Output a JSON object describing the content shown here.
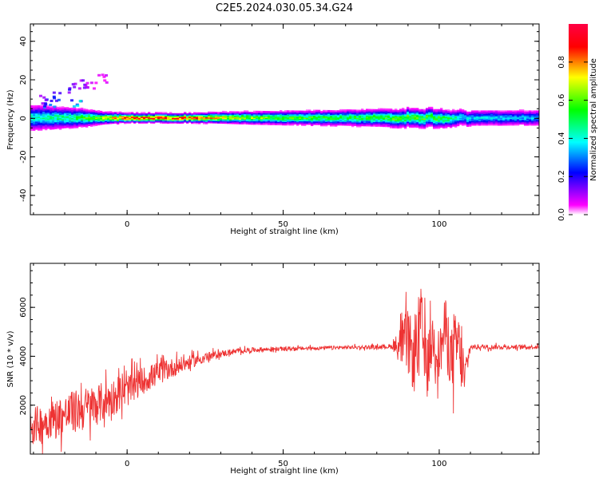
{
  "figure": {
    "title": "C2E5.2024.030.05.34.G24"
  },
  "chart_data": [
    {
      "type": "heatmap",
      "xlabel": "Height of straight line (km)",
      "ylabel": "Frequency (Hz)",
      "xlim": [
        -31,
        132
      ],
      "ylim": [
        -50,
        49
      ],
      "xticks": [
        0,
        50,
        100
      ],
      "yticks": [
        40,
        20,
        0,
        -20,
        -40
      ],
      "colorbar": {
        "label": "Normalized spectral amplitude",
        "range": [
          0.0,
          1.0
        ],
        "ticks": [
          0.0,
          0.2,
          0.4,
          0.6,
          0.8
        ],
        "colormap": [
          "#ffffff",
          "#ff00ff",
          "#0000ff",
          "#00ffff",
          "#00ff00",
          "#ffff00",
          "#ff0000"
        ]
      },
      "ridge": {
        "description_points": [
          {
            "x": -28,
            "center_hz": 0,
            "half_width_hz": 4,
            "peak": 0.45
          },
          {
            "x": -15,
            "center_hz": 0,
            "half_width_hz": 3,
            "peak": 0.55
          },
          {
            "x": -8,
            "center_hz": 0,
            "half_width_hz": 2,
            "peak": 0.7
          },
          {
            "x": 0,
            "center_hz": 0,
            "half_width_hz": 1.5,
            "peak": 0.95
          },
          {
            "x": 20,
            "center_hz": 0,
            "half_width_hz": 1.5,
            "peak": 0.95
          },
          {
            "x": 40,
            "center_hz": 0,
            "half_width_hz": 2,
            "peak": 0.65
          },
          {
            "x": 70,
            "center_hz": 0,
            "half_width_hz": 2.5,
            "peak": 0.55
          },
          {
            "x": 90,
            "center_hz": 0,
            "half_width_hz": 3,
            "peak": 0.6
          },
          {
            "x": 100,
            "center_hz": 0,
            "half_width_hz": 3,
            "peak": 0.6
          },
          {
            "x": 108,
            "center_hz": 0,
            "half_width_hz": 2.5,
            "peak": 0.4
          },
          {
            "x": 132,
            "center_hz": 0,
            "half_width_hz": 2.5,
            "peak": 0.35
          }
        ],
        "scatter_blobs": [
          {
            "x": -25,
            "hz": 8,
            "peak": 0.3
          },
          {
            "x": -22,
            "hz": 12,
            "peak": 0.25
          },
          {
            "x": -18,
            "hz": 16,
            "peak": 0.2
          },
          {
            "x": -14,
            "hz": 18,
            "peak": 0.15
          },
          {
            "x": -12,
            "hz": 18,
            "peak": 0.1
          },
          {
            "x": -8,
            "hz": 21,
            "peak": 0.08
          },
          {
            "x": -17,
            "hz": 8,
            "peak": 0.4
          },
          {
            "x": -28,
            "hz": 10,
            "peak": 0.2
          }
        ]
      }
    },
    {
      "type": "line",
      "xlabel": "Height of straight line (km)",
      "ylabel": "SNR (10 * v/v)",
      "xlim": [
        -31,
        132
      ],
      "ylim": [
        0,
        7800
      ],
      "xticks": [
        0,
        50,
        100
      ],
      "yticks": [
        2000,
        4000,
        6000
      ],
      "series": [
        {
          "color": "#ee3333",
          "x": [
            -31,
            -25,
            -20,
            -15,
            -10,
            -5,
            0,
            5,
            10,
            15,
            20,
            25,
            30,
            35,
            40,
            50,
            60,
            70,
            80,
            85,
            88,
            90,
            92,
            94,
            96,
            98,
            100,
            102,
            104,
            106,
            108,
            110,
            120,
            132
          ],
          "y": [
            1100,
            1400,
            1600,
            1800,
            2000,
            2300,
            2600,
            3000,
            3300,
            3550,
            3750,
            3950,
            4100,
            4200,
            4260,
            4300,
            4330,
            4360,
            4380,
            4400,
            4500,
            4700,
            3800,
            5500,
            3500,
            4800,
            4000,
            5200,
            3800,
            4600,
            3000,
            4380,
            4380,
            4380
          ],
          "noise_amplitude": [
            1100,
            1100,
            1200,
            1300,
            1200,
            1100,
            950,
            800,
            700,
            550,
            400,
            280,
            200,
            160,
            140,
            120,
            110,
            110,
            110,
            150,
            1400,
            1800,
            2000,
            2200,
            1800,
            1500,
            1500,
            1800,
            2000,
            2200,
            1200,
            150,
            130,
            120
          ]
        }
      ]
    }
  ]
}
